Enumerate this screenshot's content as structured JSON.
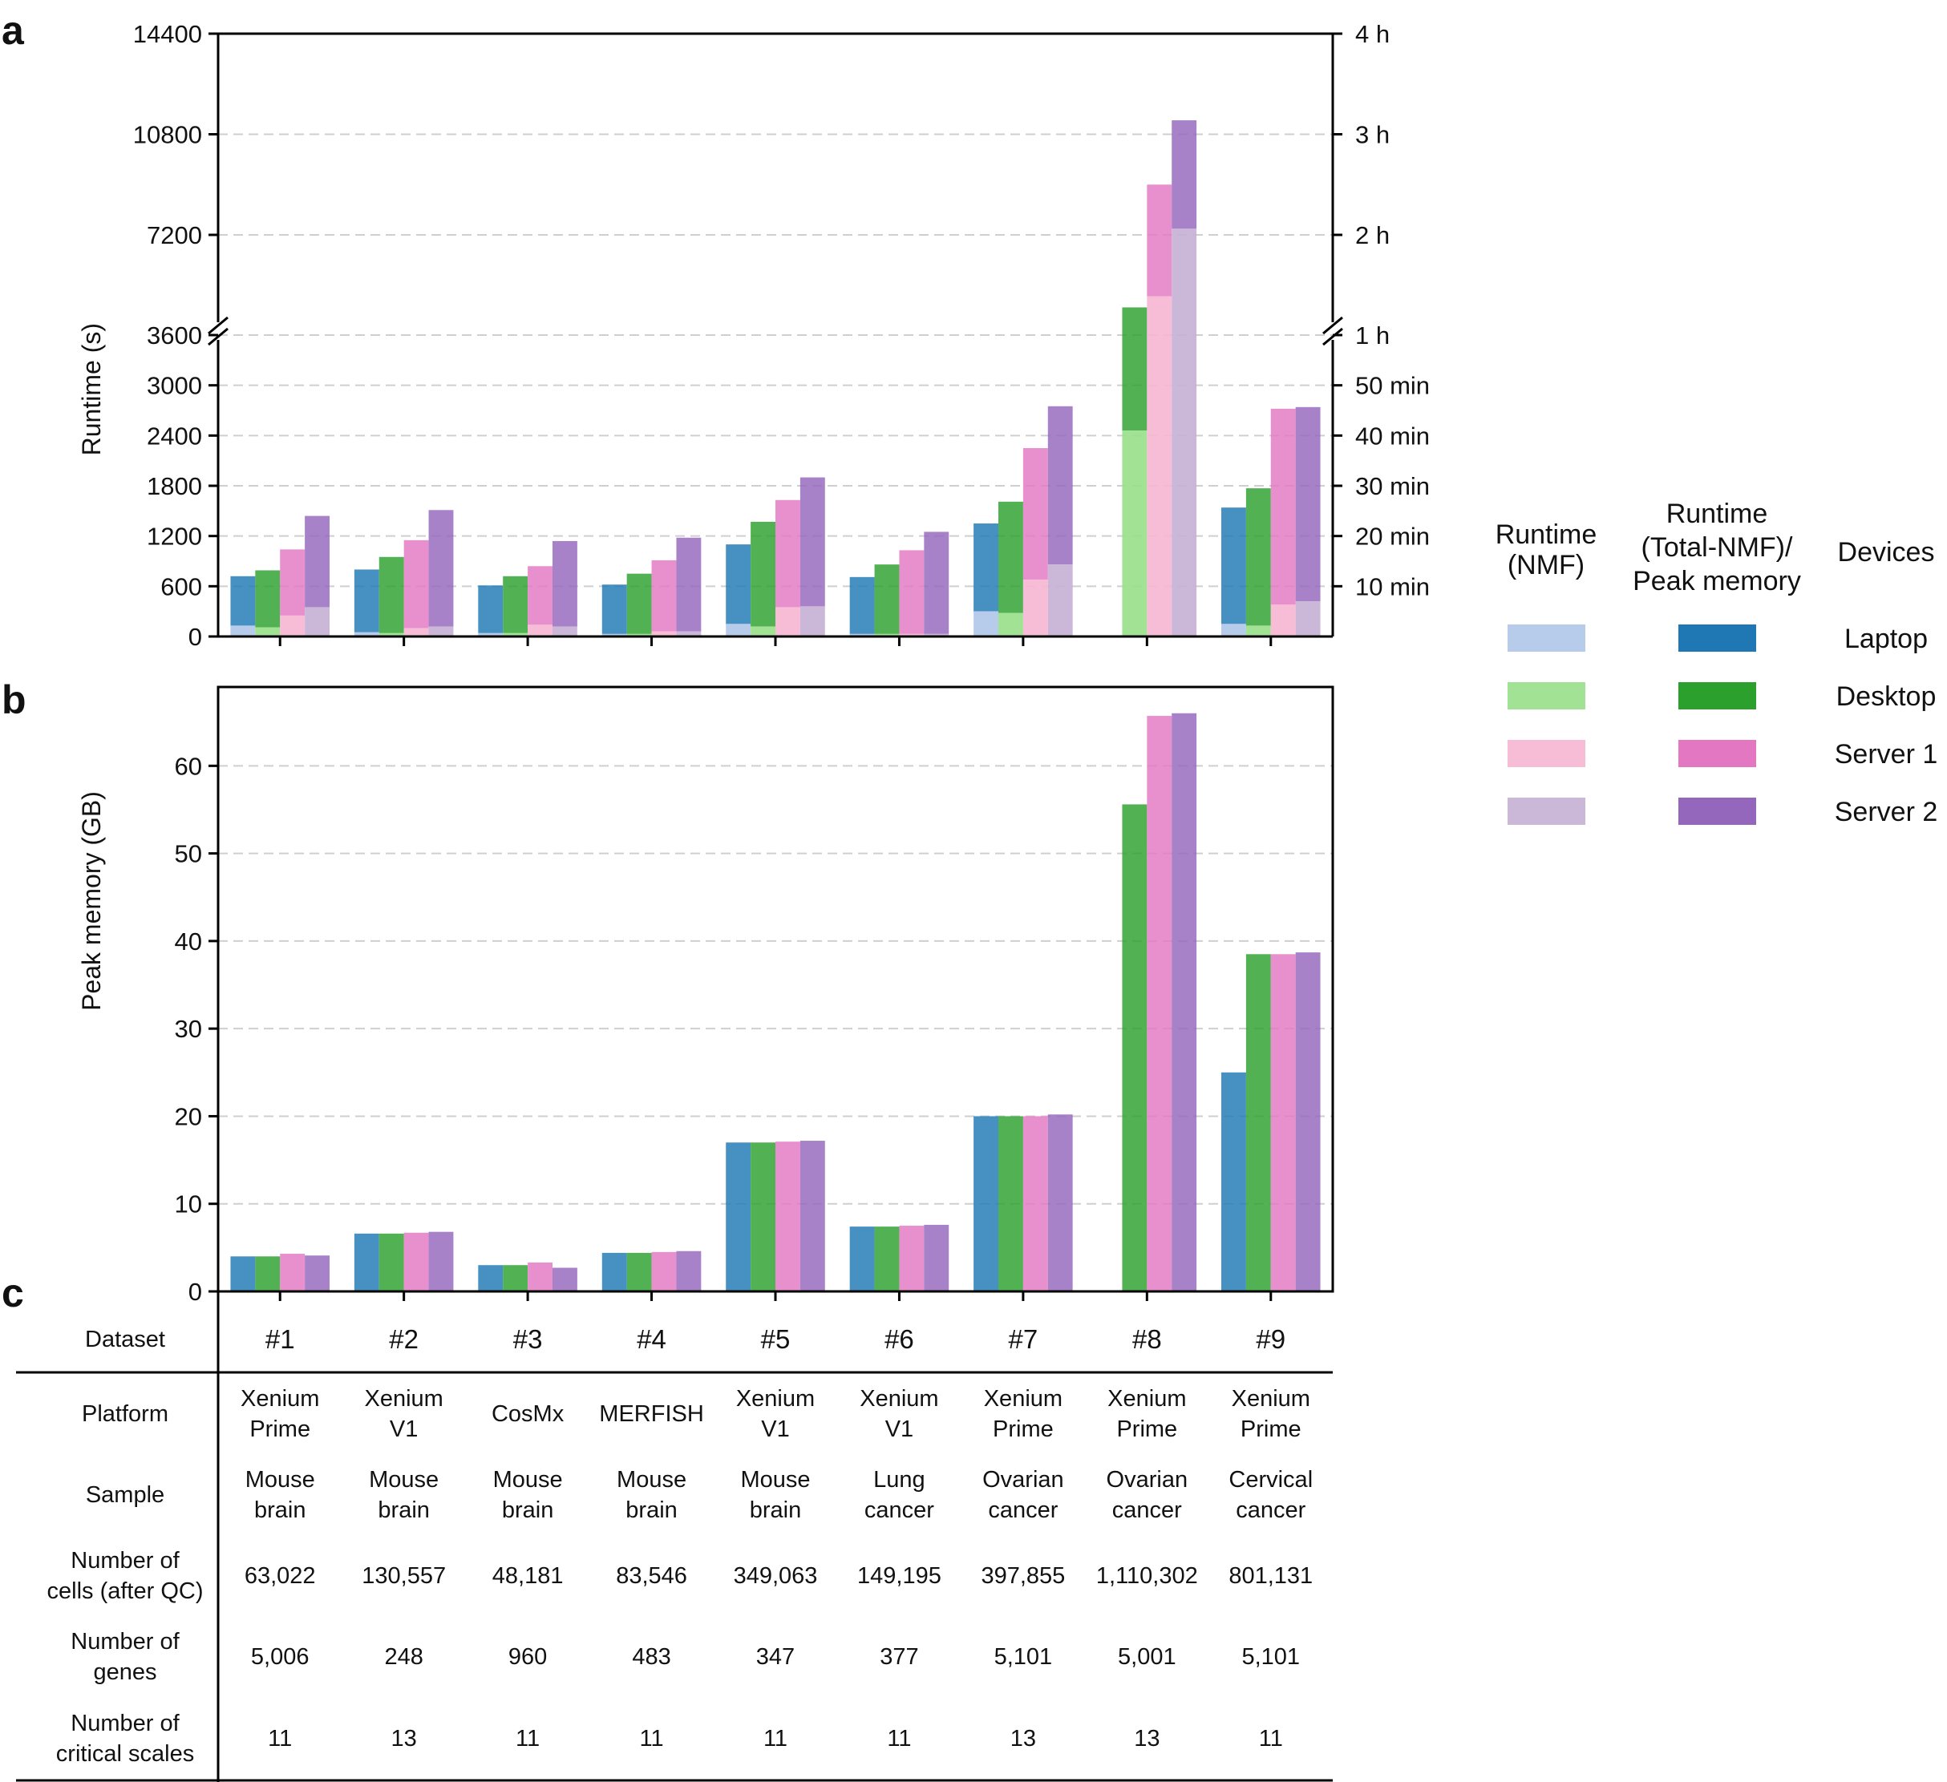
{
  "panels": {
    "a": "a",
    "b": "b",
    "c": "c"
  },
  "colors": {
    "nmf": [
      "#aec7e8",
      "#98df8a",
      "#f7b6d2",
      "#c5b0d5"
    ],
    "total": [
      "#1f77b4",
      "#2ca02c",
      "#e377c2",
      "#9467bd"
    ]
  },
  "legend": {
    "col1_title_lines": [
      "Runtime",
      "(NMF)"
    ],
    "col2_title_lines": [
      "Runtime",
      "(Total-NMF)/",
      "Peak memory"
    ],
    "col3_title": "Devices",
    "devices": [
      "Laptop",
      "Desktop",
      "Server 1",
      "Server 2"
    ]
  },
  "chart_data": [
    {
      "type": "bar",
      "stacked": true,
      "ylabel": "Runtime (s)",
      "categories": [
        "#1",
        "#2",
        "#3",
        "#4",
        "#5",
        "#6",
        "#7",
        "#8",
        "#9"
      ],
      "axis_break": [
        3600,
        7200
      ],
      "y_ticks_lower": [
        "0",
        "600",
        "1200",
        "1800",
        "2400",
        "3000",
        "3600"
      ],
      "y_ticks_upper": [
        "7200",
        "10800",
        "14400"
      ],
      "y_ticks_lower_values": [
        0,
        600,
        1200,
        1800,
        2400,
        3000,
        3600
      ],
      "y_ticks_upper_values": [
        7200,
        10800,
        14400
      ],
      "right_ticks": [
        "10 min",
        "20 min",
        "30 min",
        "40 min",
        "50 min",
        "1 h",
        "2 h",
        "3 h",
        "4 h"
      ],
      "right_ticks_values": [
        600,
        1200,
        1800,
        2400,
        3000,
        3600,
        7200,
        10800,
        14400
      ],
      "grid": true,
      "series": [
        {
          "name": "Laptop",
          "nmf": [
            130,
            50,
            40,
            30,
            150,
            30,
            300,
            null,
            150
          ],
          "total": [
            720,
            800,
            610,
            620,
            1100,
            710,
            1350,
            null,
            1540
          ]
        },
        {
          "name": "Desktop",
          "nmf": [
            110,
            40,
            40,
            30,
            120,
            30,
            280,
            2460,
            130
          ],
          "total": [
            790,
            950,
            720,
            750,
            1370,
            860,
            1610,
            5900,
            1770
          ]
        },
        {
          "name": "Server 1",
          "nmf": [
            250,
            100,
            140,
            60,
            350,
            30,
            680,
            6100,
            380
          ],
          "total": [
            1040,
            1150,
            840,
            910,
            1630,
            1030,
            2250,
            9000,
            2720
          ]
        },
        {
          "name": "Server 2",
          "nmf": [
            350,
            120,
            120,
            60,
            360,
            30,
            860,
            7420,
            420
          ],
          "total": [
            1440,
            1510,
            1140,
            1180,
            1900,
            1250,
            2750,
            11300,
            2740
          ]
        }
      ]
    },
    {
      "type": "bar",
      "ylabel": "Peak memory (GB)",
      "categories": [
        "#1",
        "#2",
        "#3",
        "#4",
        "#5",
        "#6",
        "#7",
        "#8",
        "#9"
      ],
      "ylim": [
        0,
        69
      ],
      "y_ticks": [
        "0",
        "10",
        "20",
        "30",
        "40",
        "50",
        "60"
      ],
      "y_ticks_values": [
        0,
        10,
        20,
        30,
        40,
        50,
        60
      ],
      "grid": true,
      "series": [
        {
          "name": "Laptop",
          "values": [
            4.0,
            6.6,
            3.0,
            4.4,
            17.0,
            7.4,
            20.0,
            null,
            25.0
          ]
        },
        {
          "name": "Desktop",
          "values": [
            4.0,
            6.6,
            3.0,
            4.4,
            17.0,
            7.4,
            20.0,
            55.6,
            38.5
          ]
        },
        {
          "name": "Server 1",
          "values": [
            4.3,
            6.7,
            3.3,
            4.5,
            17.1,
            7.5,
            20.0,
            65.7,
            38.5
          ]
        },
        {
          "name": "Server 2",
          "values": [
            4.1,
            6.8,
            2.7,
            4.6,
            17.2,
            7.6,
            20.2,
            66.0,
            38.7
          ]
        }
      ]
    },
    {
      "type": "table",
      "header_label": "Dataset",
      "columns": [
        "#1",
        "#2",
        "#3",
        "#4",
        "#5",
        "#6",
        "#7",
        "#8",
        "#9"
      ],
      "rows": [
        {
          "label_lines": [
            "Platform"
          ],
          "cells": [
            [
              "Xenium",
              "Prime"
            ],
            [
              "Xenium",
              "V1"
            ],
            [
              "CosMx"
            ],
            [
              "MERFISH"
            ],
            [
              "Xenium",
              "V1"
            ],
            [
              "Xenium",
              "V1"
            ],
            [
              "Xenium",
              "Prime"
            ],
            [
              "Xenium",
              "Prime"
            ],
            [
              "Xenium",
              "Prime"
            ]
          ]
        },
        {
          "label_lines": [
            "Sample"
          ],
          "cells": [
            [
              "Mouse",
              "brain"
            ],
            [
              "Mouse",
              "brain"
            ],
            [
              "Mouse",
              "brain"
            ],
            [
              "Mouse",
              "brain"
            ],
            [
              "Mouse",
              "brain"
            ],
            [
              "Lung",
              "cancer"
            ],
            [
              "Ovarian",
              "cancer"
            ],
            [
              "Ovarian",
              "cancer"
            ],
            [
              "Cervical",
              "cancer"
            ]
          ]
        },
        {
          "label_lines": [
            "Number of",
            "cells (after QC)"
          ],
          "cells": [
            [
              "63,022"
            ],
            [
              "130,557"
            ],
            [
              "48,181"
            ],
            [
              "83,546"
            ],
            [
              "349,063"
            ],
            [
              "149,195"
            ],
            [
              "397,855"
            ],
            [
              "1,110,302"
            ],
            [
              "801,131"
            ]
          ]
        },
        {
          "label_lines": [
            "Number of",
            "genes"
          ],
          "cells": [
            [
              "5,006"
            ],
            [
              "248"
            ],
            [
              "960"
            ],
            [
              "483"
            ],
            [
              "347"
            ],
            [
              "377"
            ],
            [
              "5,101"
            ],
            [
              "5,001"
            ],
            [
              "5,101"
            ]
          ]
        },
        {
          "label_lines": [
            "Number of",
            "critical scales"
          ],
          "cells": [
            [
              "11"
            ],
            [
              "13"
            ],
            [
              "11"
            ],
            [
              "11"
            ],
            [
              "11"
            ],
            [
              "11"
            ],
            [
              "13"
            ],
            [
              "13"
            ],
            [
              "11"
            ]
          ]
        }
      ]
    }
  ]
}
